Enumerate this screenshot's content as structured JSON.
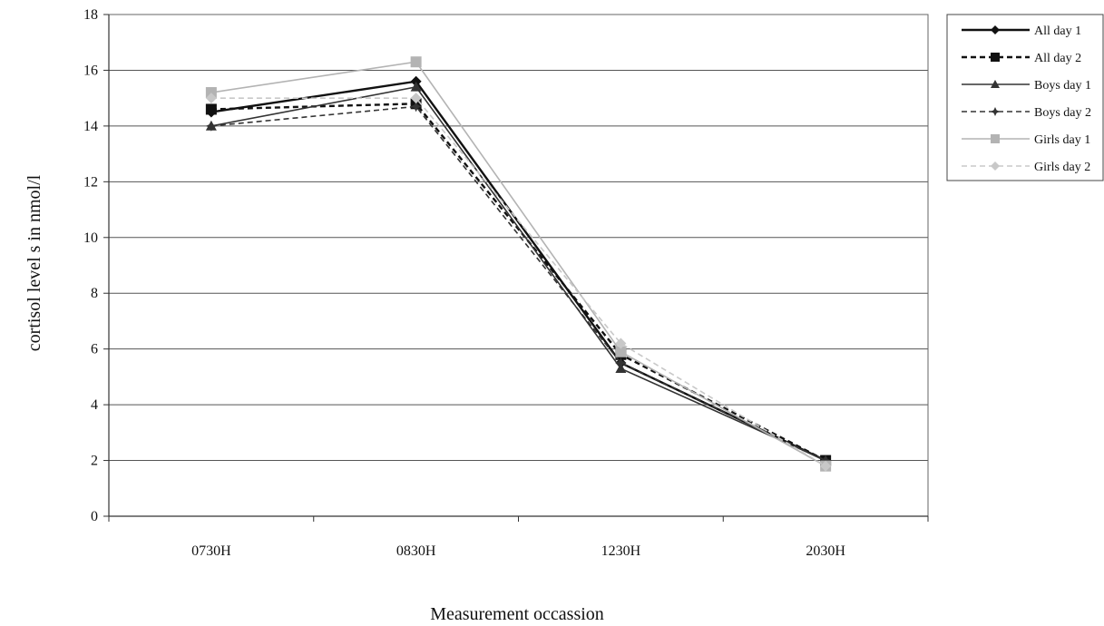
{
  "chart_data": {
    "type": "line",
    "title": "",
    "xlabel": "Measurement occassion",
    "ylabel": "cortisol level s in nmol/l",
    "categories": [
      "0730H",
      "0830H",
      "1230H",
      "2030H"
    ],
    "ylim": [
      0,
      18
    ],
    "yticks": [
      "0",
      "2",
      "4",
      "6",
      "8",
      "10",
      "12",
      "14",
      "16",
      "18"
    ],
    "grid": "horizontal",
    "legend_position": "right",
    "series": [
      {
        "name": "All day 1",
        "values": [
          14.5,
          15.6,
          5.5,
          2.0
        ],
        "color": "#111111",
        "dash": "solid",
        "marker": "diamond"
      },
      {
        "name": "All day 2",
        "values": [
          14.6,
          14.8,
          5.8,
          2.0
        ],
        "color": "#111111",
        "dash": "dashed",
        "marker": "square"
      },
      {
        "name": "Boys day 1",
        "values": [
          14.0,
          15.4,
          5.3,
          2.0
        ],
        "color": "#333333",
        "dash": "solid",
        "marker": "triangle"
      },
      {
        "name": "Boys day 2",
        "values": [
          14.0,
          14.7,
          5.5,
          2.0
        ],
        "color": "#333333",
        "dash": "dashed",
        "marker": "star"
      },
      {
        "name": "Girls day 1",
        "values": [
          15.2,
          16.3,
          5.9,
          1.8
        ],
        "color": "#b3b3b3",
        "dash": "solid",
        "marker": "square"
      },
      {
        "name": "Girls day 2",
        "values": [
          15.0,
          15.0,
          6.2,
          1.8
        ],
        "color": "#c8c8c8",
        "dash": "dashed",
        "marker": "diamond"
      }
    ]
  }
}
